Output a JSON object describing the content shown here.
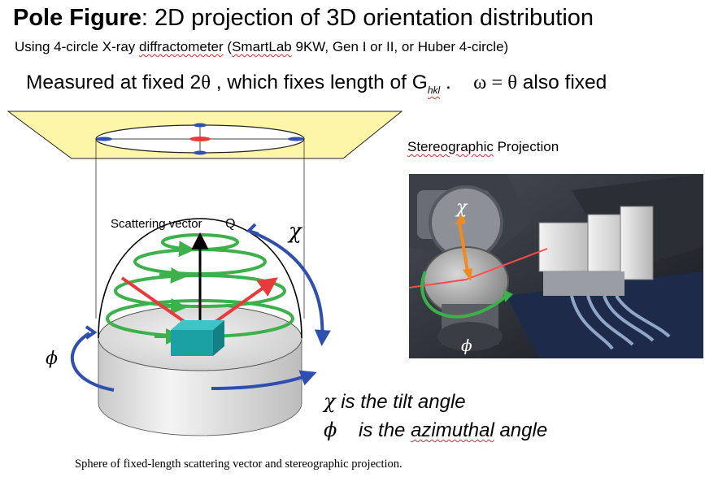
{
  "header": {
    "title_bold": "Pole Figure",
    "title_rest": ": 2D projection of 3D orientation distribution",
    "subtitle_pre": "Using 4-circle X-ray ",
    "subtitle_diff": "diffractometer",
    "subtitle_mid": "  (",
    "subtitle_smart": "SmartLab",
    "subtitle_post": " 9KW, Gen I or II, or Huber 4-circle)"
  },
  "measurement": {
    "pre": "Measured at fixed 2",
    "theta": "θ",
    "mid": " , which fixes length of ",
    "g": "G",
    "hkl": "hkl",
    "dot": " .",
    "omega_eq": "ω = θ",
    "post": "  also fixed"
  },
  "diagram": {
    "scattering_label": "Scattering vector",
    "q_label": "Q",
    "chi_symbol": "χ",
    "phi_symbol": "ϕ"
  },
  "stereo": {
    "label_word": "Stereographic",
    "label_rest": " Projection",
    "photo_chi": "χ",
    "photo_phi": "ϕ"
  },
  "definitions": {
    "chi_symbol": "χ",
    "chi_text": " is the tilt angle",
    "phi_symbol": "ϕ",
    "phi_pre": "    is the ",
    "phi_word": "azimuthal",
    "phi_post": " angle"
  },
  "caption": "Sphere of fixed-length scattering vector and stereographic projection.",
  "colors": {
    "plane": "#fdf6a8",
    "green": "#3cb04a",
    "red": "#e83a3a",
    "blue": "#2f4fae",
    "teal": "#1ba0a4",
    "orange": "#f08a1e"
  }
}
